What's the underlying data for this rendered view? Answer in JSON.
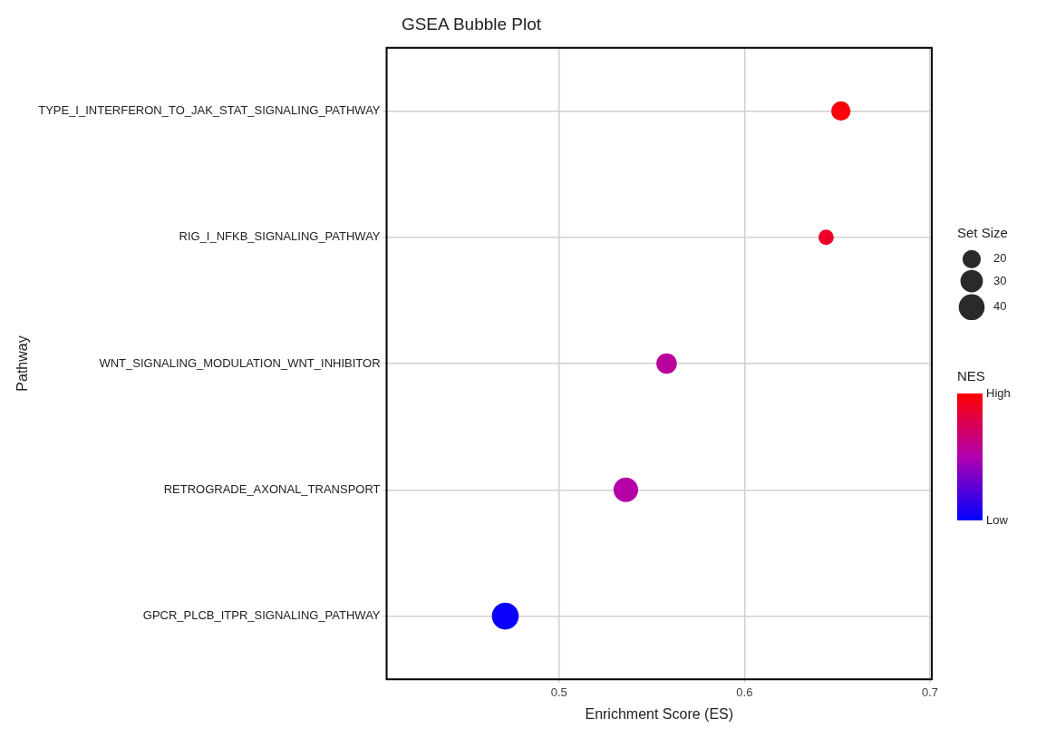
{
  "chart_data": {
    "type": "bubble",
    "title": "GSEA Bubble Plot",
    "xlabel": "Enrichment Score (ES)",
    "ylabel": "Pathway",
    "orientation": "horizontal",
    "categories": [
      "TYPE_I_INTERFERON_TO_JAK_STAT_SIGNALING_PATHWAY",
      "RIG_I_NFKB_SIGNALING_PATHWAY",
      "WNT_SIGNALING_MODULATION_WNT_INHIBITOR",
      "RETROGRADE_AXONAL_TRANSPORT",
      "GPCR_PLCB_ITPR_SIGNALING_PATHWAY"
    ],
    "values": [
      0.652,
      0.644,
      0.558,
      0.536,
      0.471
    ],
    "sizes": [
      22,
      14,
      25,
      36,
      43
    ],
    "size_legend": [
      20,
      30,
      40
    ],
    "legend_title": "Set Size",
    "cvalues": [
      0.97,
      0.88,
      0.56,
      0.53,
      0.03
    ],
    "clabel": "NES",
    "clim": [
      0,
      1
    ],
    "cticks": [
      {
        "value": 0,
        "label": "Low"
      },
      {
        "value": 1,
        "label": "High"
      }
    ],
    "xlim": [
      0.407,
      0.701
    ],
    "xticks": [
      0.5,
      0.6,
      0.7
    ],
    "grid": true,
    "marker": "circle"
  }
}
